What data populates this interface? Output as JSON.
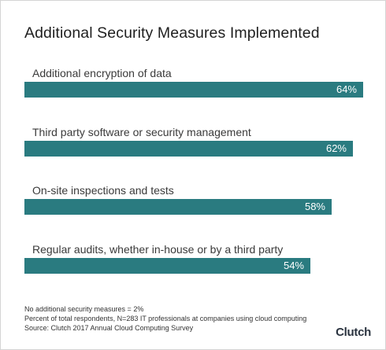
{
  "chart_data": {
    "type": "bar",
    "orientation": "horizontal",
    "title": "Additional Security Measures Implemented",
    "categories": [
      "Additional encryption of data",
      "Third party software or security management",
      "On-site inspections and tests",
      "Regular audits, whether in-house or by a third party"
    ],
    "values": [
      64,
      62,
      58,
      54
    ],
    "value_labels": [
      "64%",
      "62%",
      "58%",
      "54%"
    ],
    "bar_color": "#2a7b80",
    "xlim": [
      0,
      64
    ],
    "grid": false
  },
  "footnotes": [
    "No additional security measures = 2%",
    "Percent of total respondents,  N=283 IT professionals at companies using cloud computing",
    "Source: Clutch 2017 Annual Cloud Computing Survey"
  ],
  "logo_text": "Clutch"
}
